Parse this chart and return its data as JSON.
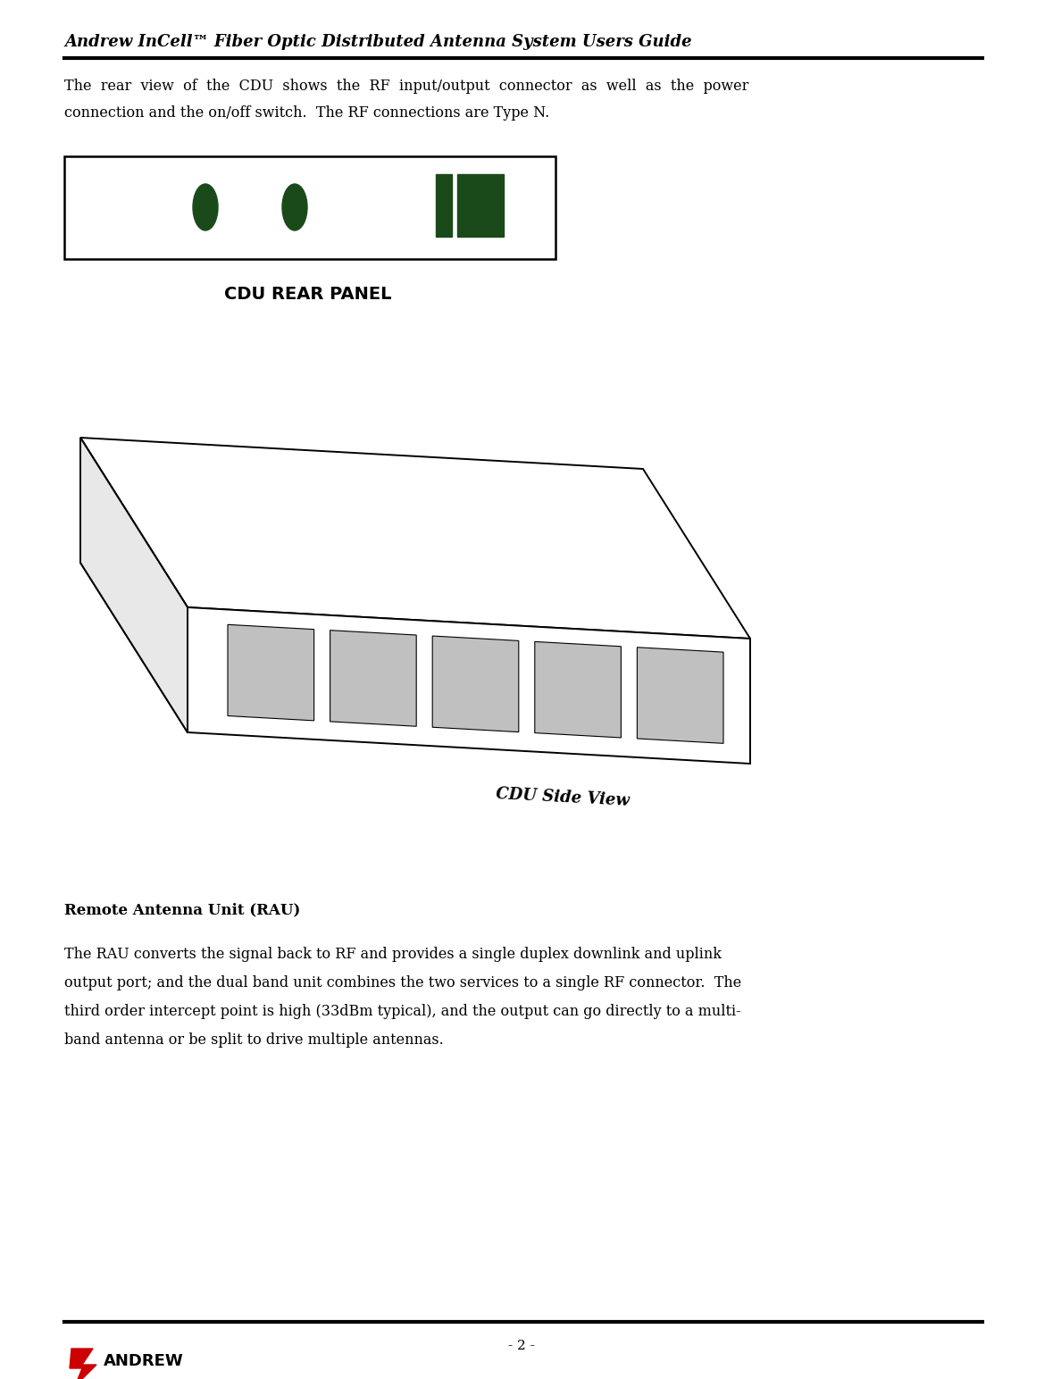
{
  "page_title": "Andrew InCell™ Fiber Optic Distributed Antenna System Users Guide",
  "page_number": "- 2 -",
  "bg_color": "#ffffff",
  "text_color": "#000000",
  "para1_line1": "The  rear  view  of  the  CDU  shows  the  RF  input/output  connector  as  well  as  the  power",
  "para1_line2": "connection and the on/off switch.  The RF connections are Type N.",
  "cdu_rear_label": "CDU REAR PANEL",
  "cdu_side_label": "CDU Side View",
  "rau_heading": "Remote Antenna Unit (RAU)",
  "para2_line1": "The RAU converts the signal back to RF and provides a single duplex downlink and uplink",
  "para2_line2": "output port; and the dual band unit combines the two services to a single RF connector.  The",
  "para2_line3": "third order intercept point is high (33dBm typical), and the output can go directly to a multi-",
  "para2_line4": "band antenna or be split to drive multiple antennas.",
  "dark_green": "#1a4a1a",
  "gray_rect": "#c0c0c0",
  "andrew_red": "#cc0000",
  "line_color": "#000000"
}
